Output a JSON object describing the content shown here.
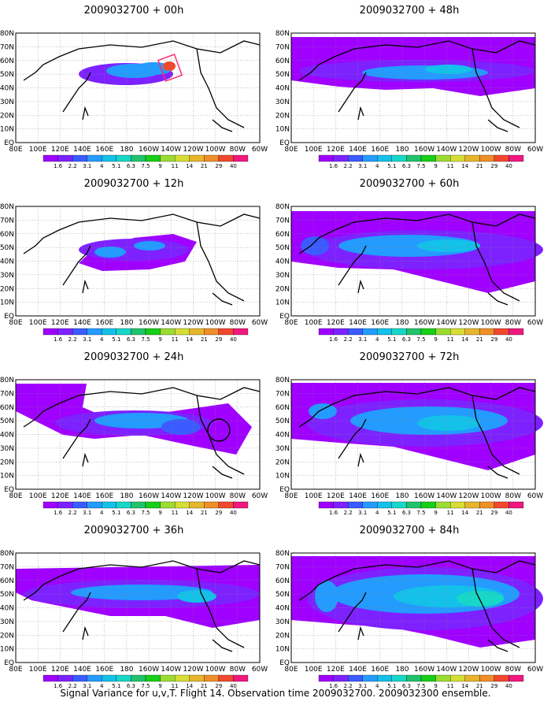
{
  "footer_caption": "Signal Variance for u,v,T. Flight 14. Observation time 2009032700. 2009032300 ensemble.",
  "lat_labels": [
    "80N",
    "70N",
    "60N",
    "50N",
    "40N",
    "30N",
    "20N",
    "10N",
    "EQ"
  ],
  "lon_labels": [
    "80E",
    "100E",
    "120E",
    "140E",
    "160E",
    "180",
    "160W",
    "140W",
    "120W",
    "100W",
    "80W",
    "60W"
  ],
  "colorbar": {
    "levels": [
      "1.6",
      "2.2",
      "3.1",
      "4",
      "5.1",
      "6.3",
      "7.5",
      "9",
      "11",
      "14",
      "21",
      "29",
      "40"
    ],
    "colors": [
      "#9f00ff",
      "#7d22ff",
      "#3b5bff",
      "#239bff",
      "#13c1e9",
      "#16d7c8",
      "#1fc36c",
      "#16cf16",
      "#9bdc31",
      "#d6de35",
      "#e7b52b",
      "#f08e27",
      "#f2472f",
      "#f0187f"
    ]
  },
  "panels": [
    {
      "title": "2009032700 + 00h"
    },
    {
      "title": "2009032700 + 48h"
    },
    {
      "title": "2009032700 + 12h"
    },
    {
      "title": "2009032700 + 60h"
    },
    {
      "title": "2009032700 + 24h"
    },
    {
      "title": "2009032700 + 72h"
    },
    {
      "title": "2009032700 + 36h"
    },
    {
      "title": "2009032700 + 84h"
    }
  ]
}
